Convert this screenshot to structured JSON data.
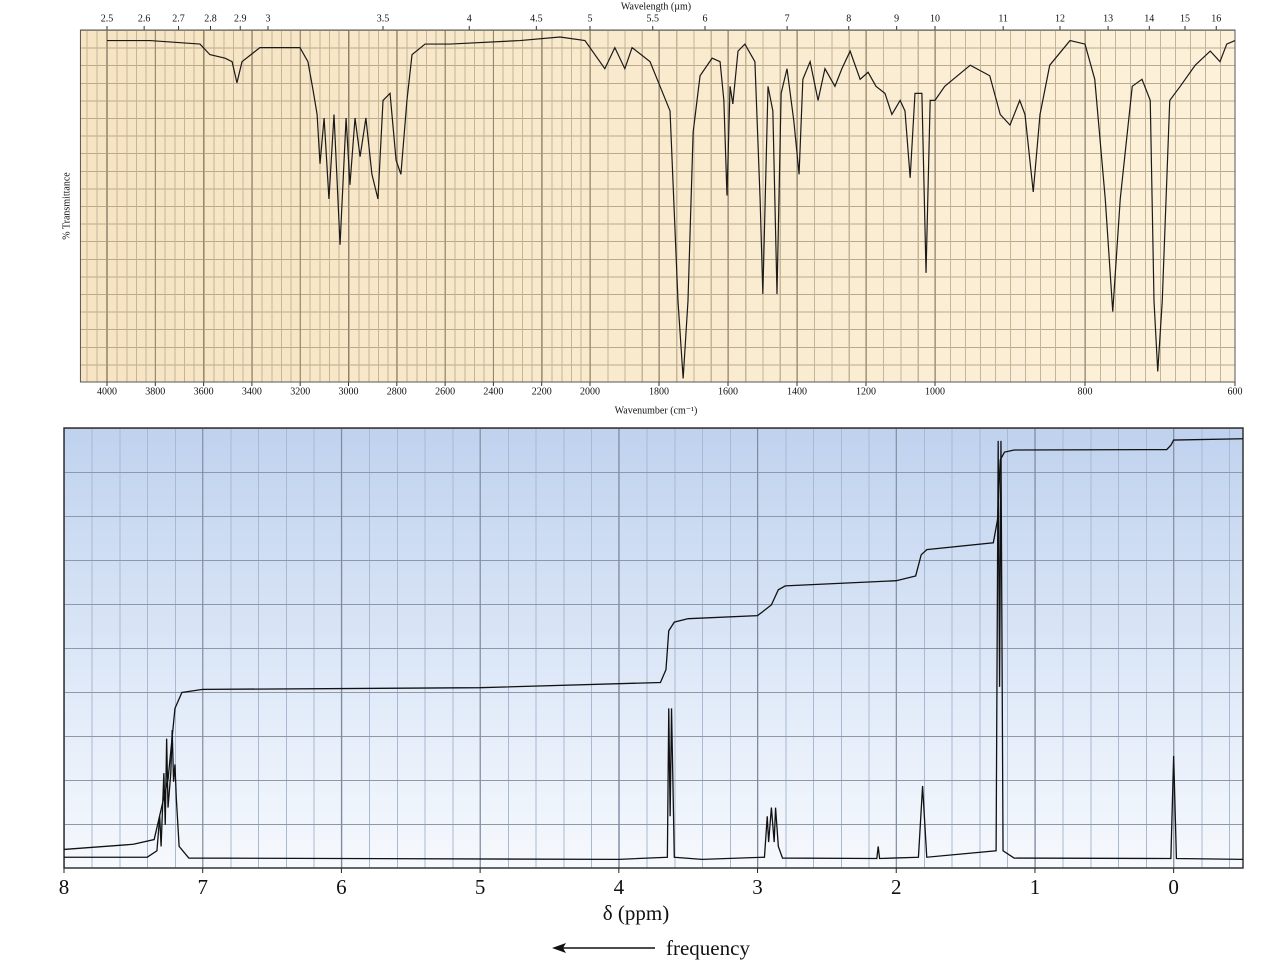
{
  "chart_data": [
    {
      "type": "line",
      "x2_label": "Wavelength (µm)",
      "x_label": "Wavenumber (cm⁻¹)",
      "y_label": "% Transmittance",
      "x": [
        4000,
        3822,
        3615,
        3574,
        3511,
        3482,
        3462,
        3441,
        3367,
        3201,
        3168,
        3147,
        3130,
        3118,
        3101,
        3081,
        3060,
        3035,
        3010,
        2994,
        2973,
        2952,
        2928,
        2903,
        2878,
        2857,
        2828,
        2803,
        2783,
        2758,
        2737,
        2683,
        2580,
        2290,
        2124,
        2021,
        1957,
        1928,
        1899,
        1878,
        1826,
        1797,
        1768,
        1745,
        1730,
        1716,
        1701,
        1681,
        1646,
        1623,
        1612,
        1603,
        1594,
        1586,
        1571,
        1551,
        1522,
        1507,
        1499,
        1484,
        1470,
        1458,
        1446,
        1429,
        1409,
        1394,
        1383,
        1362,
        1339,
        1319,
        1290,
        1270,
        1246,
        1217,
        1194,
        1171,
        1145,
        1125,
        1101,
        1087,
        1072,
        1058,
        1038,
        1026,
        1014,
        1000,
        987,
        953,
        927,
        913,
        900,
        887,
        880,
        869,
        860,
        847,
        820,
        800,
        787,
        773,
        763,
        753,
        737,
        724,
        713,
        708,
        703,
        697,
        687,
        673,
        653,
        633,
        620,
        611,
        600
      ],
      "values": [
        97,
        97,
        96,
        93,
        92,
        91,
        85,
        91,
        95,
        95,
        91,
        83,
        76,
        62,
        75,
        52,
        76,
        39,
        75,
        56,
        75,
        64,
        75,
        59,
        52,
        80,
        82,
        63,
        59,
        80,
        93,
        96,
        96,
        97,
        98,
        97,
        89,
        95,
        89,
        95,
        91,
        84,
        77,
        23,
        1,
        23,
        71,
        87,
        92,
        91,
        80,
        53,
        84,
        79,
        94,
        96,
        91,
        52,
        25,
        84,
        77,
        25,
        82,
        89,
        74,
        59,
        86,
        91,
        80,
        89,
        84,
        89,
        94,
        86,
        88,
        84,
        82,
        76,
        80,
        77,
        58,
        82,
        82,
        31,
        80,
        80,
        84,
        90,
        87,
        76,
        73,
        80,
        76,
        54,
        76,
        90,
        97,
        96,
        86,
        52,
        20,
        52,
        84,
        86,
        80,
        23,
        3,
        23,
        80,
        84,
        90,
        94,
        91,
        96,
        97
      ],
      "color": "#1a1a1a",
      "xlim": [
        4110,
        600
      ],
      "xticks": [
        4000,
        3800,
        3600,
        3400,
        3200,
        3000,
        2800,
        2600,
        2400,
        2200,
        2000,
        1800,
        1600,
        1400,
        1200,
        1000,
        800,
        600
      ],
      "x2ticks": [
        2.5,
        2.6,
        2.7,
        2.8,
        2.9,
        3,
        3.5,
        4,
        4.5,
        5,
        5.5,
        6,
        7,
        8,
        9,
        10,
        11,
        12,
        13,
        14,
        15,
        16
      ],
      "ylim": [
        0,
        100
      ],
      "grid": true
    },
    {
      "type": "line",
      "x_label": "δ (ppm)",
      "annotation": "frequency",
      "xlim": [
        8,
        -0.5
      ],
      "xticks": [
        8,
        7,
        6,
        5,
        4,
        3,
        2,
        1,
        0
      ],
      "ylim": [
        -2,
        100
      ],
      "grid": true,
      "series": [
        {
          "color": "#111111",
          "x": [
            8,
            7.4,
            7.33,
            7.31,
            7.3,
            7.28,
            7.27,
            7.26,
            7.25,
            7.23,
            7.22,
            7.21,
            7.2,
            7.19,
            7.17,
            7.1,
            4,
            3.65,
            3.64,
            3.63,
            3.62,
            3.6,
            3.4,
            2.95,
            2.93,
            2.92,
            2.9,
            2.88,
            2.87,
            2.85,
            2.82,
            2.14,
            2.13,
            2.12,
            1.84,
            1.81,
            1.78,
            1.28,
            1.265,
            1.255,
            1.245,
            1.23,
            1.15,
            0.02,
            0,
            -0.02,
            -0.5
          ],
          "values": [
            0.5,
            0.5,
            2,
            10,
            3,
            20,
            8,
            28,
            12,
            20,
            30,
            18,
            22,
            14,
            3,
            0.3,
            0,
            0.5,
            35,
            10,
            35,
            0.5,
            0,
            0.5,
            10,
            4,
            12,
            4,
            12,
            3,
            0.3,
            0.2,
            3,
            0.2,
            0.5,
            17,
            0.5,
            2,
            97,
            40,
            97,
            2,
            0.3,
            0.2,
            24,
            0.2,
            0
          ]
        },
        {
          "color": "#111111",
          "x": [
            8,
            7.5,
            7.35,
            7.25,
            7.2,
            7.15,
            7,
            5,
            3.7,
            3.66,
            3.64,
            3.6,
            3.5,
            3,
            2.9,
            2.85,
            2.8,
            2,
            1.86,
            1.82,
            1.78,
            1.3,
            1.27,
            1.25,
            1.22,
            1.15,
            0.05,
            0.02,
            0,
            -0.5
          ],
          "values": [
            2.3,
            3.5,
            4.6,
            18.5,
            35,
            38.7,
            39.4,
            39.8,
            41,
            44,
            53,
            55,
            55.8,
            56.5,
            59,
            62.5,
            63.4,
            64.6,
            65.7,
            70.6,
            71.8,
            73.4,
            78.7,
            92.6,
            94.4,
            94.9,
            95,
            96,
            97.2,
            97.5
          ]
        }
      ]
    }
  ]
}
